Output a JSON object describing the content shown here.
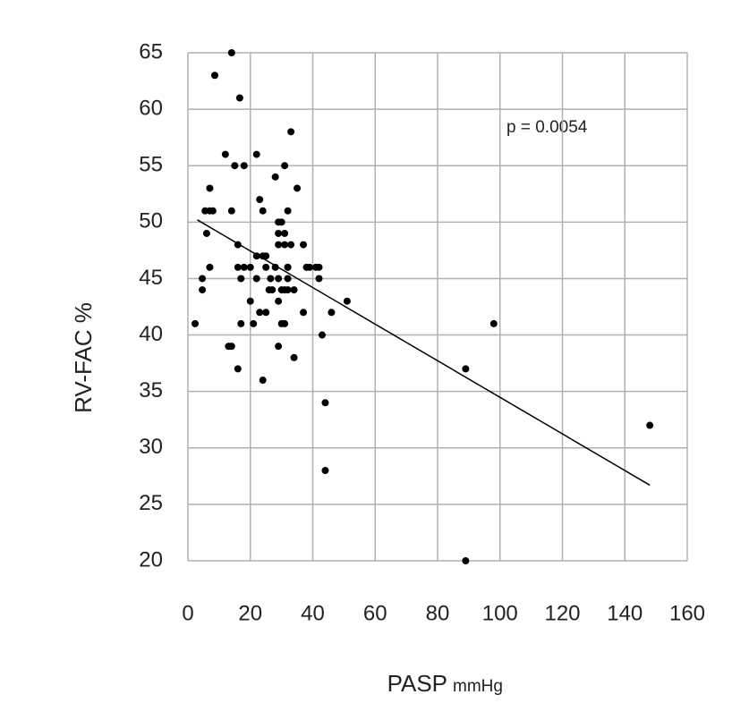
{
  "chart_data": {
    "type": "scatter",
    "x_label": "PASP",
    "x_label_unit": "mmHg",
    "y_label": "RV-FAC %",
    "annotation": "p = 0.0054",
    "xlim": [
      0,
      160
    ],
    "xticks": [
      0,
      20,
      40,
      60,
      80,
      100,
      120,
      140,
      160
    ],
    "ylim": [
      20,
      65
    ],
    "yticks": [
      20,
      25,
      30,
      35,
      40,
      45,
      50,
      55,
      60,
      65
    ],
    "grid": true,
    "color": "#000000",
    "x": [
      2.3,
      8.6,
      14,
      16.6,
      4.6,
      4.6,
      7,
      5.5,
      7,
      8,
      6,
      7,
      12,
      14,
      15,
      18,
      22,
      16,
      16,
      18,
      20,
      17,
      17,
      13,
      14,
      16,
      20,
      21,
      22,
      22,
      24,
      25,
      23,
      24,
      23,
      25,
      24,
      25,
      26,
      26.5,
      27,
      28,
      28,
      29,
      29,
      30,
      29,
      31,
      29,
      31,
      29,
      30,
      31,
      29,
      30,
      31,
      31,
      33,
      32,
      32,
      32,
      32,
      33,
      32,
      34,
      35,
      34,
      37,
      37,
      38,
      39,
      41,
      42,
      42,
      43,
      44,
      44,
      46,
      51,
      89,
      98,
      89,
      148
    ],
    "y": [
      41,
      63,
      65,
      61,
      45,
      44,
      53,
      51,
      51,
      51,
      49,
      46,
      56,
      51,
      55,
      55,
      56,
      48,
      46,
      46,
      46,
      45,
      41,
      39,
      39,
      37,
      43,
      41,
      45,
      47,
      47,
      47,
      52,
      51,
      42,
      42,
      36,
      46,
      44,
      45,
      44,
      54,
      46,
      39,
      50,
      50,
      49,
      49,
      48,
      48,
      45,
      44,
      44,
      43,
      41,
      41,
      55,
      58,
      51,
      46,
      46,
      45,
      48,
      44,
      44,
      53,
      38,
      48,
      42,
      46,
      46,
      46,
      46,
      45,
      40,
      34,
      28,
      42,
      43,
      37,
      41,
      20,
      32
    ],
    "trend_line": {
      "x": [
        3,
        148
      ],
      "y": [
        50.2,
        26.7
      ],
      "color": "#000000"
    }
  }
}
